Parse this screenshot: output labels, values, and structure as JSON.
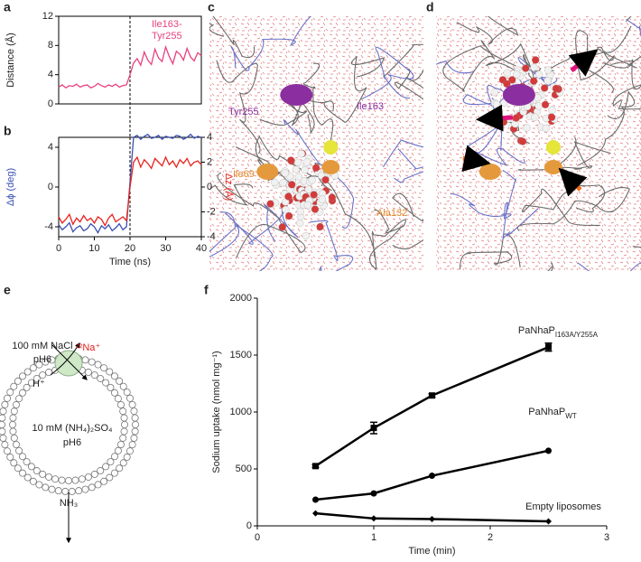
{
  "chart_data": [
    {
      "type": "line",
      "panel": "a",
      "ylabel": "Distance (Å)",
      "annotation": [
        "Ile163-",
        "Tyr255"
      ],
      "vline": 20,
      "xlim": [
        0,
        40
      ],
      "ylim": [
        0,
        12
      ],
      "yticks": [
        0,
        4,
        8,
        12
      ],
      "x": [
        0,
        1,
        2,
        3,
        4,
        5,
        6,
        7,
        8,
        9,
        10,
        11,
        12,
        13,
        14,
        15,
        16,
        17,
        18,
        19,
        20,
        21,
        22,
        23,
        24,
        25,
        26,
        27,
        28,
        29,
        30,
        31,
        32,
        33,
        34,
        35,
        36,
        37,
        38,
        39,
        40
      ],
      "series": [
        {
          "name": "Ile163-Tyr255",
          "color": "#e8417f",
          "values": [
            2.3,
            2.6,
            2.2,
            2.5,
            2.4,
            2.7,
            2.3,
            2.5,
            2.6,
            2.2,
            2.4,
            2.8,
            2.5,
            2.3,
            2.6,
            2.4,
            2.7,
            2.3,
            2.5,
            2.6,
            4.0,
            5.6,
            6.2,
            5.3,
            7.1,
            6.0,
            5.4,
            7.5,
            6.3,
            5.8,
            7.8,
            6.5,
            5.5,
            7.2,
            6.8,
            6.0,
            7.6,
            6.4,
            5.9,
            7.0,
            6.6
          ]
        }
      ]
    },
    {
      "type": "line",
      "panel": "b",
      "xlabel": "Time (ns)",
      "ylabel": "Δϕ (deg)",
      "y2label": "Δz (Å)",
      "vline": 20,
      "xlim": [
        0,
        40
      ],
      "xticks": [
        0,
        10,
        20,
        30,
        40
      ],
      "ylim": [
        -5,
        5
      ],
      "yticks": [
        -4,
        0,
        4
      ],
      "y2lim": [
        -4,
        4
      ],
      "y2ticks": [
        -4,
        -2,
        0,
        2,
        4
      ],
      "x": [
        0,
        1,
        2,
        3,
        4,
        5,
        6,
        7,
        8,
        9,
        10,
        11,
        12,
        13,
        14,
        15,
        16,
        17,
        18,
        19,
        20,
        21,
        22,
        23,
        24,
        25,
        26,
        27,
        28,
        29,
        30,
        31,
        32,
        33,
        34,
        35,
        36,
        37,
        38,
        39,
        40
      ],
      "series": [
        {
          "name": "Δϕ",
          "color": "#3a4fb0",
          "values": [
            -3.8,
            -4.3,
            -4.0,
            -3.6,
            -4.5,
            -4.1,
            -3.9,
            -4.4,
            -4.2,
            -3.7,
            -4.0,
            -4.6,
            -3.9,
            -4.2,
            -3.8,
            -4.4,
            -4.1,
            -3.7,
            -4.3,
            -4.0,
            0.5,
            5.0,
            5.2,
            4.8,
            5.1,
            5.3,
            4.9,
            5.0,
            5.2,
            4.8,
            5.1,
            5.0,
            4.9,
            5.2,
            5.1,
            4.8,
            5.0,
            5.3,
            4.9,
            5.1,
            5.0
          ]
        },
        {
          "name": "Δz",
          "color": "#e8231e",
          "axis": "y2",
          "values": [
            -2.4,
            -2.9,
            -2.6,
            -2.2,
            -3.0,
            -2.5,
            -2.8,
            -2.3,
            -2.7,
            -2.5,
            -2.9,
            -2.4,
            -2.6,
            -3.1,
            -2.5,
            -2.2,
            -2.8,
            -2.6,
            -2.4,
            -2.7,
            0,
            2.0,
            2.4,
            1.6,
            2.2,
            1.9,
            1.5,
            2.3,
            2.0,
            1.7,
            2.4,
            1.8,
            2.1,
            1.6,
            2.2,
            1.9,
            2.3,
            1.7,
            2.0,
            2.1,
            1.8
          ]
        }
      ]
    },
    {
      "type": "line",
      "panel": "f",
      "xlabel": "Time (min)",
      "ylabel": "Sodium uptake (nmol mg⁻¹)",
      "xlim": [
        0,
        3
      ],
      "xticks": [
        0,
        1,
        2,
        3
      ],
      "ylim": [
        0,
        2000
      ],
      "yticks": [
        0,
        500,
        1000,
        1500,
        2000
      ],
      "x": [
        0.5,
        1,
        1.5,
        2.5
      ],
      "series": [
        {
          "name": "PaNhaP",
          "name_sub": "I163A/Y255A",
          "color": "#000000",
          "marker": "square",
          "values": [
            525,
            860,
            1145,
            1570
          ],
          "errors": [
            12,
            50,
            15,
            35
          ]
        },
        {
          "name": "PaNhaP",
          "name_sub": "WT",
          "color": "#000000",
          "marker": "circle",
          "values": [
            230,
            285,
            440,
            660
          ]
        },
        {
          "name": "Empty liposomes",
          "color": "#000000",
          "marker": "diamond",
          "values": [
            110,
            65,
            60,
            40
          ]
        }
      ]
    }
  ],
  "images": [
    {
      "panel": "c",
      "labels": [
        "Tyr255",
        "Ile163",
        "Ile69",
        "Ala132"
      ]
    },
    {
      "panel": "d"
    }
  ],
  "diagram": {
    "panel": "e",
    "outside": [
      "100 mM NaCl",
      "pH6"
    ],
    "ion": "²²Na⁺",
    "proton": "H⁺",
    "inside": [
      "10 mM (NH₄)₂SO₄",
      "pH6"
    ],
    "ammonia": "NH₃"
  }
}
